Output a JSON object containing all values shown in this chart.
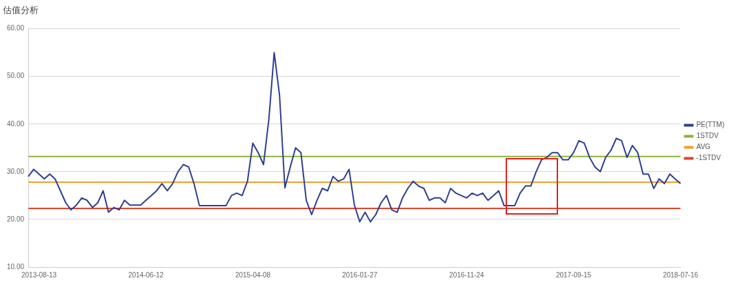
{
  "chart_data": {
    "type": "line",
    "title": "估值分析",
    "categories": [
      null,
      null,
      "2013-08-13",
      null,
      null,
      null,
      null,
      null,
      null,
      null,
      null,
      null,
      null,
      null,
      null,
      null,
      null,
      null,
      null,
      null,
      null,
      null,
      "2014-06-12",
      null,
      null,
      null,
      null,
      null,
      null,
      null,
      null,
      null,
      null,
      null,
      null,
      null,
      null,
      null,
      null,
      null,
      null,
      null,
      "2015-04-08",
      null,
      null,
      null,
      null,
      null,
      null,
      null,
      null,
      null,
      null,
      null,
      null,
      null,
      null,
      null,
      null,
      null,
      null,
      null,
      "2016-01-27",
      null,
      null,
      null,
      null,
      null,
      null,
      null,
      null,
      null,
      null,
      null,
      null,
      null,
      null,
      null,
      null,
      null,
      null,
      null,
      "2016-11-24",
      null,
      null,
      null,
      null,
      null,
      null,
      null,
      null,
      null,
      null,
      null,
      null,
      null,
      null,
      null,
      null,
      null,
      null,
      null,
      "2017-09-15",
      null,
      null,
      null,
      null,
      null,
      null,
      null,
      null,
      null,
      null,
      null,
      null,
      null,
      null,
      null,
      null,
      null,
      null,
      null,
      "2018-07-16"
    ],
    "series": [
      {
        "name": "PE(TTM)",
        "color": "#2e3f8f",
        "values": [
          29,
          30.5,
          29.5,
          28.5,
          29.5,
          28.5,
          26,
          23.5,
          22,
          23,
          24.5,
          24,
          22.5,
          23.5,
          26,
          21.5,
          22.5,
          22,
          24,
          23,
          23,
          23,
          24,
          25,
          26,
          27.5,
          26,
          27.5,
          30,
          31.5,
          31,
          27.5,
          22.9,
          22.9,
          22.9,
          22.9,
          22.9,
          22.9,
          25,
          25.5,
          25,
          28,
          36,
          34,
          31.5,
          41,
          55,
          46,
          26.6,
          31,
          35,
          34,
          24,
          21,
          24,
          26.5,
          26,
          29,
          28,
          28.5,
          30.5,
          23,
          19.5,
          21.5,
          19.5,
          21,
          23.5,
          25,
          22,
          21.5,
          24.5,
          26.5,
          28,
          27,
          26.5,
          24,
          24.5,
          24.5,
          23.5,
          26.5,
          25.5,
          25,
          24.5,
          25.5,
          25,
          25.5,
          24,
          25,
          26,
          22.9,
          22.9,
          22.9,
          25.5,
          27,
          27,
          30,
          32.5,
          33,
          34,
          34,
          32.5,
          32.5,
          34,
          36.5,
          36,
          33,
          31,
          30,
          33,
          34.5,
          37,
          36.5,
          33,
          35.5,
          34,
          29.5,
          29.5,
          26.5,
          28.5,
          27.5,
          29.5,
          28.5,
          27.5
        ]
      },
      {
        "name": "1STDV",
        "color": "#8db33a",
        "values": [
          33.2,
          33.2,
          33.2,
          33.2,
          33.2,
          33.2,
          33.2,
          33.2,
          33.2,
          33.2,
          33.2,
          33.2,
          33.2,
          33.2,
          33.2,
          33.2,
          33.2,
          33.2,
          33.2,
          33.2,
          33.2,
          33.2,
          33.2,
          33.2,
          33.2,
          33.2,
          33.2,
          33.2,
          33.2,
          33.2,
          33.2,
          33.2,
          33.2,
          33.2,
          33.2,
          33.2,
          33.2,
          33.2,
          33.2,
          33.2,
          33.2,
          33.2,
          33.2,
          33.2,
          33.2,
          33.2,
          33.2,
          33.2,
          33.2,
          33.2,
          33.2,
          33.2,
          33.2,
          33.2,
          33.2,
          33.2,
          33.2,
          33.2,
          33.2,
          33.2,
          33.2,
          33.2,
          33.2,
          33.2,
          33.2,
          33.2,
          33.2,
          33.2,
          33.2,
          33.2,
          33.2,
          33.2,
          33.2,
          33.2,
          33.2,
          33.2,
          33.2,
          33.2,
          33.2,
          33.2,
          33.2,
          33.2,
          33.2,
          33.2,
          33.2,
          33.2,
          33.2,
          33.2,
          33.2,
          33.2,
          33.2,
          33.2,
          33.2,
          33.2,
          33.2,
          33.2,
          33.2,
          33.2,
          33.2,
          33.2,
          33.2,
          33.2,
          33.2,
          33.2,
          33.2,
          33.2,
          33.2,
          33.2,
          33.2,
          33.2,
          33.2,
          33.2,
          33.2,
          33.2,
          33.2,
          33.2,
          33.2,
          33.2,
          33.2,
          33.2,
          33.2,
          33.2,
          33.2
        ]
      },
      {
        "name": "AVG",
        "color": "#f0a030",
        "values": [
          27.8,
          27.8,
          27.8,
          27.8,
          27.8,
          27.8,
          27.8,
          27.8,
          27.8,
          27.8,
          27.8,
          27.8,
          27.8,
          27.8,
          27.8,
          27.8,
          27.8,
          27.8,
          27.8,
          27.8,
          27.8,
          27.8,
          27.8,
          27.8,
          27.8,
          27.8,
          27.8,
          27.8,
          27.8,
          27.8,
          27.8,
          27.8,
          27.8,
          27.8,
          27.8,
          27.8,
          27.8,
          27.8,
          27.8,
          27.8,
          27.8,
          27.8,
          27.8,
          27.8,
          27.8,
          27.8,
          27.8,
          27.8,
          27.8,
          27.8,
          27.8,
          27.8,
          27.8,
          27.8,
          27.8,
          27.8,
          27.8,
          27.8,
          27.8,
          27.8,
          27.8,
          27.8,
          27.8,
          27.8,
          27.8,
          27.8,
          27.8,
          27.8,
          27.8,
          27.8,
          27.8,
          27.8,
          27.8,
          27.8,
          27.8,
          27.8,
          27.8,
          27.8,
          27.8,
          27.8,
          27.8,
          27.8,
          27.8,
          27.8,
          27.8,
          27.8,
          27.8,
          27.8,
          27.8,
          27.8,
          27.8,
          27.8,
          27.8,
          27.8,
          27.8,
          27.8,
          27.8,
          27.8,
          27.8,
          27.8,
          27.8,
          27.8,
          27.8,
          27.8,
          27.8,
          27.8,
          27.8,
          27.8,
          27.8,
          27.8,
          27.8,
          27.8,
          27.8,
          27.8,
          27.8,
          27.8,
          27.8,
          27.8,
          27.8,
          27.8,
          27.8,
          27.8,
          27.8
        ]
      },
      {
        "name": "-1STDV",
        "color": "#e0452a",
        "values": [
          22.3,
          22.3,
          22.3,
          22.3,
          22.3,
          22.3,
          22.3,
          22.3,
          22.3,
          22.3,
          22.3,
          22.3,
          22.3,
          22.3,
          22.3,
          22.3,
          22.3,
          22.3,
          22.3,
          22.3,
          22.3,
          22.3,
          22.3,
          22.3,
          22.3,
          22.3,
          22.3,
          22.3,
          22.3,
          22.3,
          22.3,
          22.3,
          22.3,
          22.3,
          22.3,
          22.3,
          22.3,
          22.3,
          22.3,
          22.3,
          22.3,
          22.3,
          22.3,
          22.3,
          22.3,
          22.3,
          22.3,
          22.3,
          22.3,
          22.3,
          22.3,
          22.3,
          22.3,
          22.3,
          22.3,
          22.3,
          22.3,
          22.3,
          22.3,
          22.3,
          22.3,
          22.3,
          22.3,
          22.3,
          22.3,
          22.3,
          22.3,
          22.3,
          22.3,
          22.3,
          22.3,
          22.3,
          22.3,
          22.3,
          22.3,
          22.3,
          22.3,
          22.3,
          22.3,
          22.3,
          22.3,
          22.3,
          22.3,
          22.3,
          22.3,
          22.3,
          22.3,
          22.3,
          22.3,
          22.3,
          22.3,
          22.3,
          22.3,
          22.3,
          22.3,
          22.3,
          22.3,
          22.3,
          22.3,
          22.3,
          22.3,
          22.3,
          22.3,
          22.3,
          22.3,
          22.3,
          22.3,
          22.3,
          22.3,
          22.3,
          22.3,
          22.3,
          22.3,
          22.3,
          22.3,
          22.3,
          22.3,
          22.3,
          22.3,
          22.3,
          22.3,
          22.3,
          22.3
        ]
      }
    ],
    "ylim": [
      10,
      60
    ],
    "yticks": [
      {
        "value": 10,
        "label": "10.00"
      },
      {
        "value": 20,
        "label": "20.00"
      },
      {
        "value": 30,
        "label": "30.00"
      },
      {
        "value": 40,
        "label": "40.00"
      },
      {
        "value": 50,
        "label": "50.00"
      },
      {
        "value": 60,
        "label": "60.00"
      }
    ],
    "grid": "y",
    "legend": "right",
    "marker": "none",
    "line_style": "solid"
  }
}
